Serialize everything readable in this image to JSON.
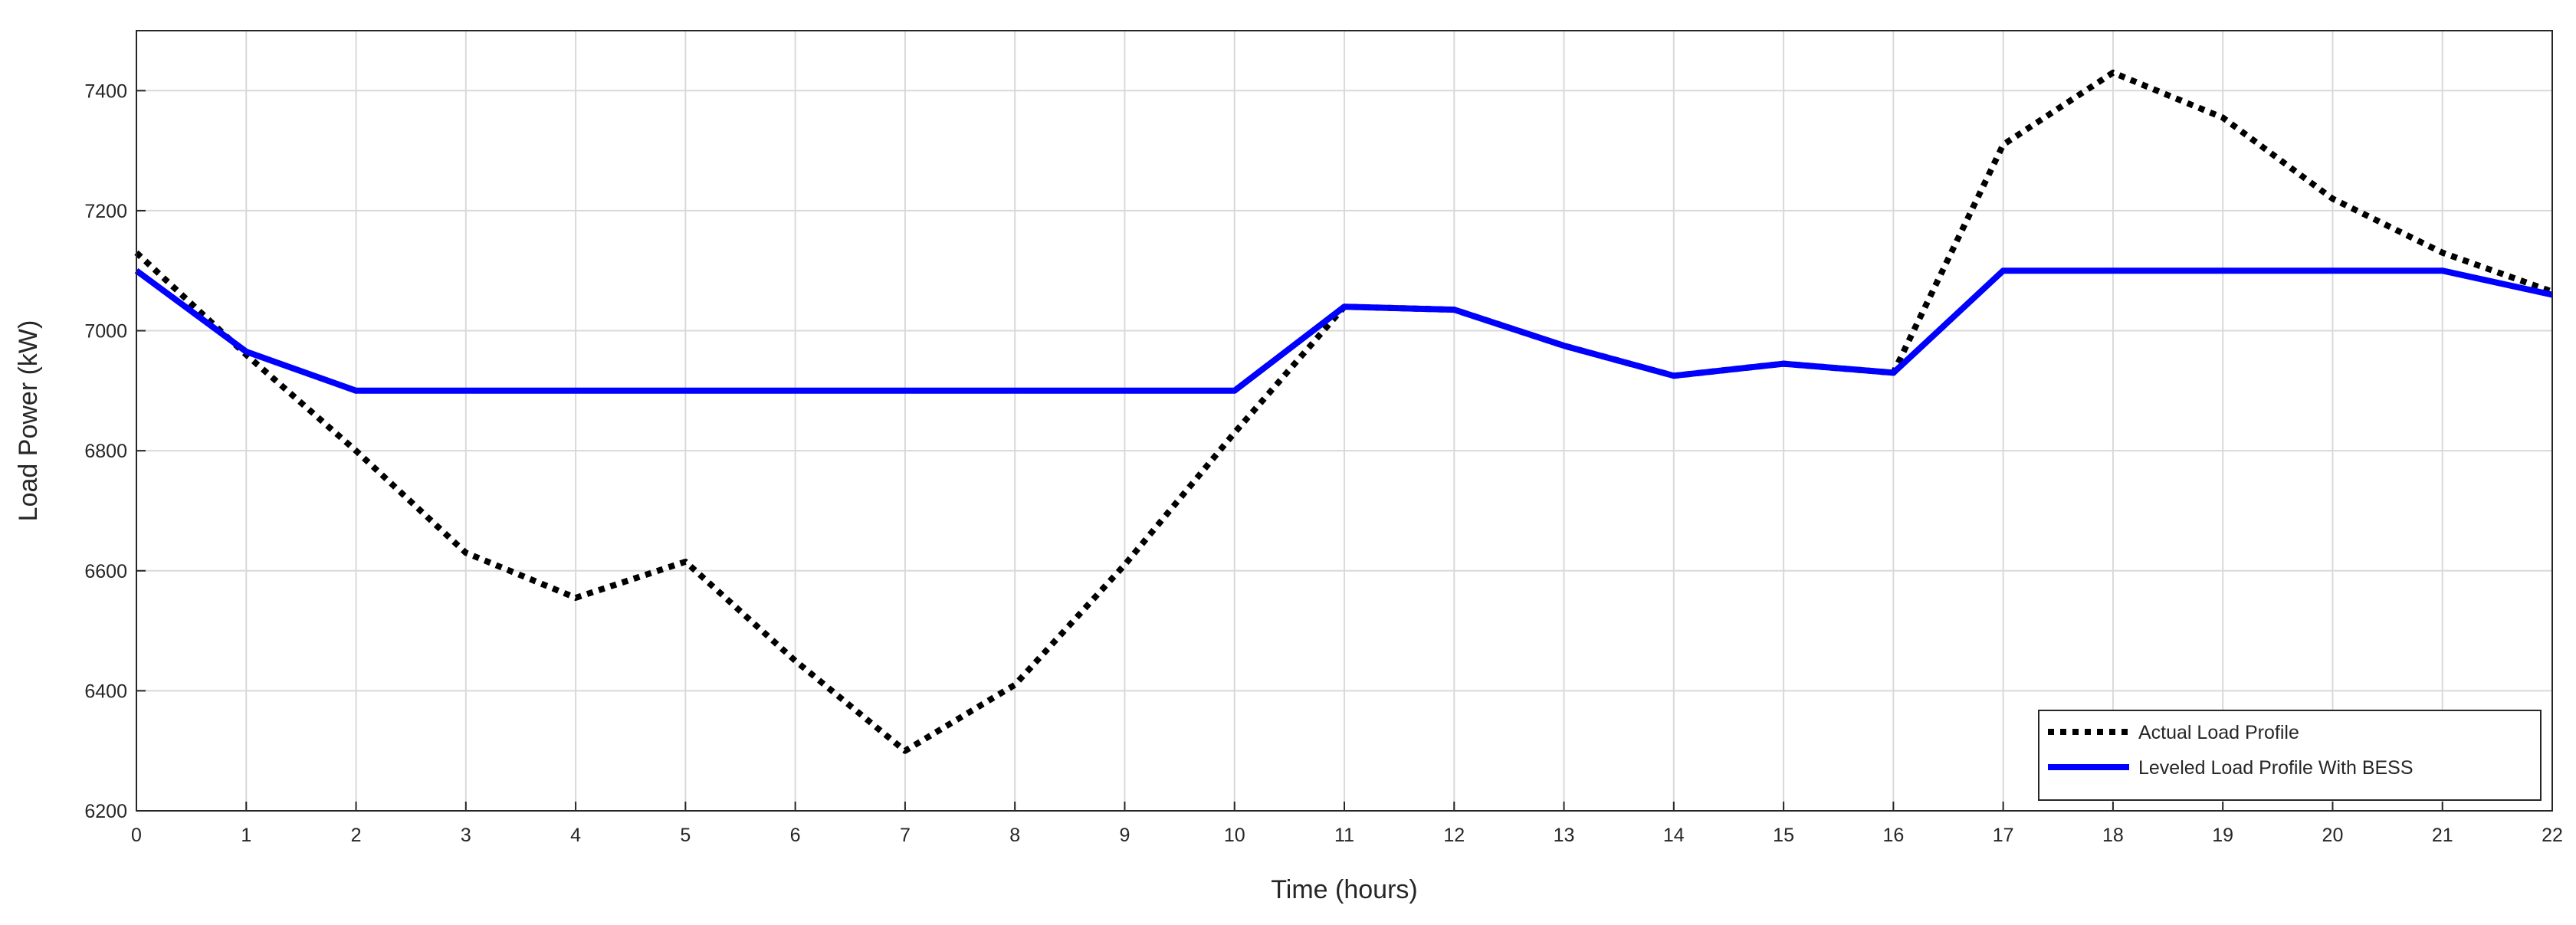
{
  "chart_data": {
    "type": "line",
    "xlabel": "Time (hours)",
    "ylabel": "Load Power (kW)",
    "xlim": [
      0,
      22
    ],
    "ylim": [
      6200,
      7500
    ],
    "xticks": [
      0,
      1,
      2,
      3,
      4,
      5,
      6,
      7,
      8,
      9,
      10,
      11,
      12,
      13,
      14,
      15,
      16,
      17,
      18,
      19,
      20,
      21,
      22
    ],
    "yticks": [
      6200,
      6400,
      6600,
      6800,
      7000,
      7200,
      7400
    ],
    "grid": true,
    "legend_position": "bottom-right",
    "x": [
      0,
      1,
      2,
      3,
      4,
      5,
      6,
      7,
      8,
      9,
      10,
      11,
      12,
      13,
      14,
      15,
      16,
      17,
      18,
      19,
      20,
      21,
      22
    ],
    "series": [
      {
        "name": "Actual Load Profile",
        "style": "dotted",
        "color": "#000000",
        "values": [
          7130,
          6960,
          6800,
          6630,
          6555,
          6615,
          6450,
          6300,
          6410,
          6610,
          6830,
          7040,
          7035,
          6975,
          6925,
          6945,
          6930,
          7310,
          7430,
          7355,
          7220,
          7130,
          7065
        ]
      },
      {
        "name": "Leveled Load Profile With BESS",
        "style": "solid",
        "color": "#0000ff",
        "values": [
          7100,
          6965,
          6900,
          6900,
          6900,
          6900,
          6900,
          6900,
          6900,
          6900,
          6900,
          7040,
          7035,
          6975,
          6925,
          6945,
          6930,
          7100,
          7100,
          7100,
          7100,
          7100,
          7060
        ]
      }
    ]
  }
}
